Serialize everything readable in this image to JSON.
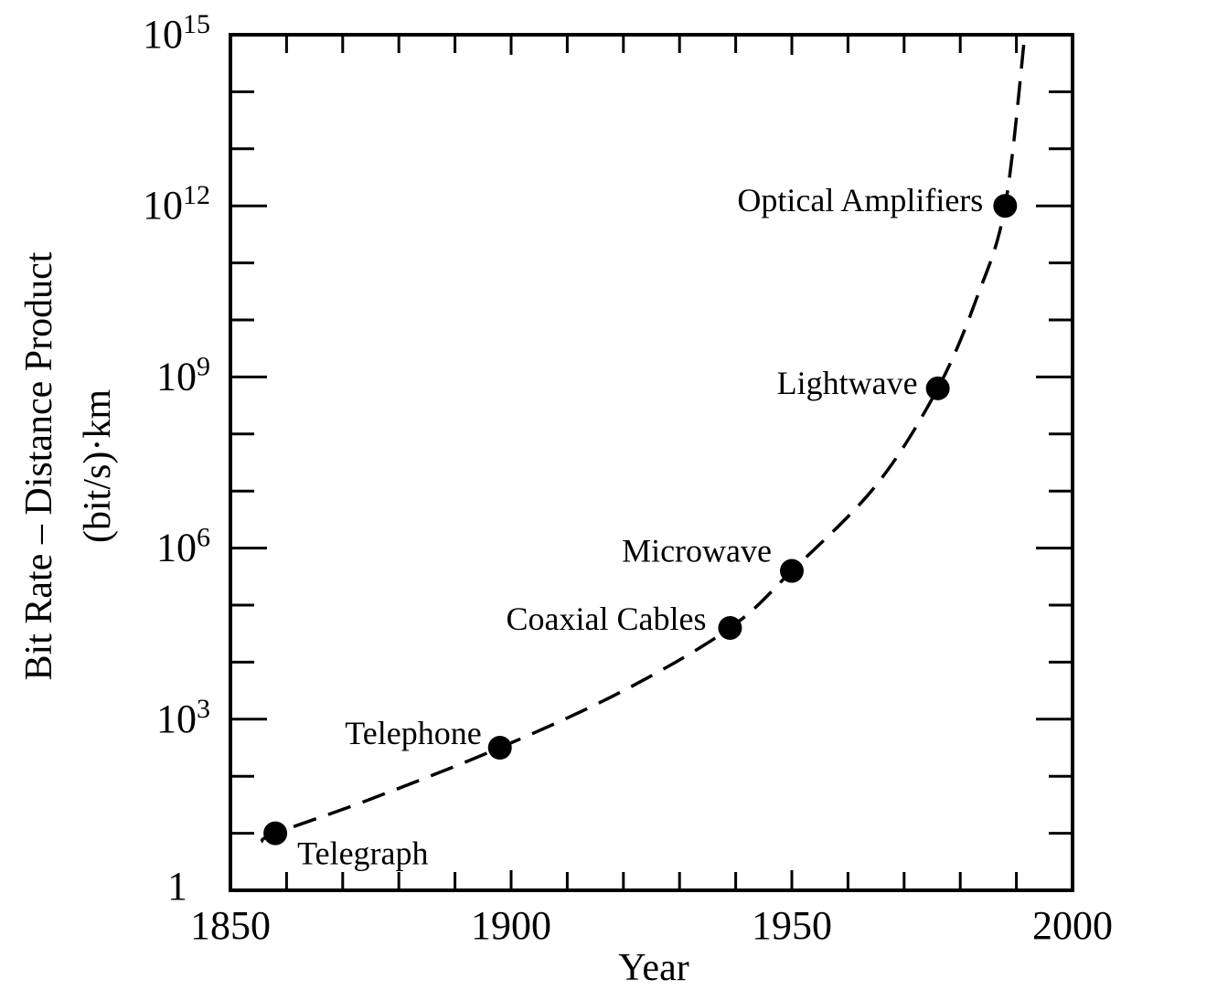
{
  "chart_data": {
    "type": "scatter",
    "title": "",
    "xlabel": "Year",
    "ylabel_line1": "Bit Rate – Distance Product",
    "ylabel_line2": "(bit/s)·km",
    "xlim": [
      1850,
      2000
    ],
    "ylim_log10": [
      0,
      15
    ],
    "y_scale": "log",
    "x_ticks": [
      "1850",
      "1900",
      "1950",
      "2000"
    ],
    "y_ticks": [
      {
        "exp": 0,
        "base": "1",
        "sup": ""
      },
      {
        "exp": 3,
        "base": "10",
        "sup": "3"
      },
      {
        "exp": 6,
        "base": "10",
        "sup": "6"
      },
      {
        "exp": 9,
        "base": "10",
        "sup": "9"
      },
      {
        "exp": 12,
        "base": "10",
        "sup": "12"
      },
      {
        "exp": 15,
        "base": "10",
        "sup": "15"
      }
    ],
    "grid": false,
    "points": [
      {
        "label": "Telegraph",
        "year": 1858,
        "log10_value": 1.0
      },
      {
        "label": "Telephone",
        "year": 1898,
        "log10_value": 2.5
      },
      {
        "label": "Coaxial Cables",
        "year": 1939,
        "log10_value": 4.6
      },
      {
        "label": "Microwave",
        "year": 1950,
        "log10_value": 5.6
      },
      {
        "label": "Lightwave",
        "year": 1976,
        "log10_value": 8.8
      },
      {
        "label": "Optical Amplifiers",
        "year": 1988,
        "log10_value": 12.0
      }
    ],
    "trend_curve": [
      [
        1855.5,
        0.85
      ],
      [
        1858,
        1.0
      ],
      [
        1875,
        1.6
      ],
      [
        1898,
        2.5
      ],
      [
        1920,
        3.5
      ],
      [
        1939,
        4.6
      ],
      [
        1950,
        5.6
      ],
      [
        1965,
        7.1
      ],
      [
        1976,
        8.8
      ],
      [
        1983,
        10.4
      ],
      [
        1988,
        12.0
      ],
      [
        1991.5,
        15.0
      ]
    ],
    "trend_style": "dashed",
    "color": "#000000"
  }
}
